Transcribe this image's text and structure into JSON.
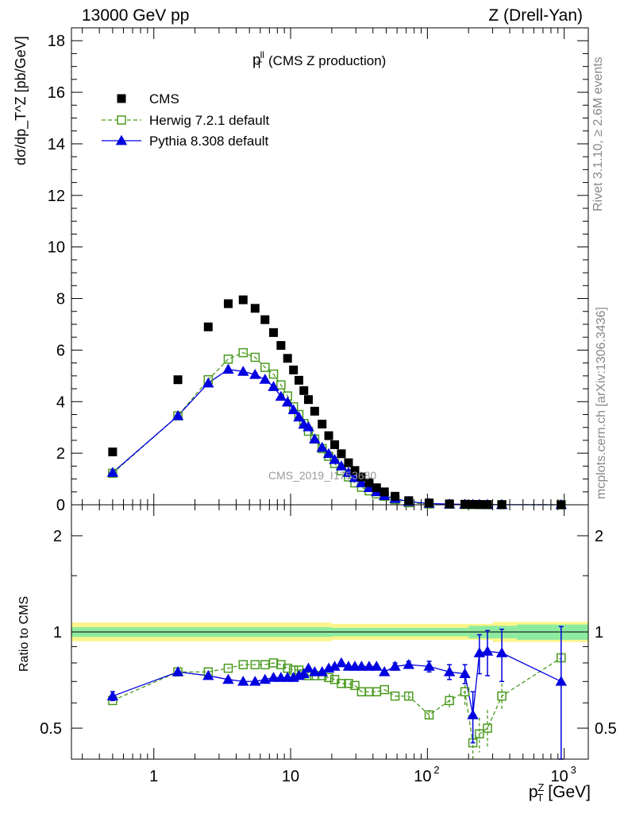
{
  "header": {
    "left": "13000 GeV pp",
    "right": "Z (Drell-Yan)"
  },
  "side_labels": {
    "rivet": "Rivet 3.1.10, ≥ 2.6M events",
    "mcplots": "mcplots.cern.ch [arXiv:1306.3436]"
  },
  "watermark": "CMS_2019_I1753680",
  "colors": {
    "cms": "#000000",
    "herwig": "#4a9a1e",
    "pythia": "#0000e0",
    "band_outer": "#fbf58a",
    "band_inner": "#8deba0"
  },
  "chart_data": [
    {
      "type": "scatter",
      "panel": "main",
      "title": "p_T^{ll} (CMS Z production)",
      "title_main": "p",
      "title_sup": "ll",
      "title_sub": "T",
      "title_rest": "(CMS Z production)",
      "ylabel": "dσ/dp_T^Z [pb/GeV]",
      "ylim": [
        0,
        18.5
      ],
      "xscale": "log",
      "xlim": [
        0.25,
        1500
      ],
      "yticks": [
        "0",
        "2",
        "4",
        "6",
        "8",
        "10",
        "12",
        "14",
        "16",
        "18"
      ],
      "legend_position": "top-left",
      "legend": [
        {
          "label": "CMS",
          "style": "filled-square"
        },
        {
          "label": "Herwig 7.2.1 default",
          "style": "open-square-dashed"
        },
        {
          "label": "Pythia 8.308 default",
          "style": "filled-triangle-solid"
        }
      ],
      "x": [
        0.5,
        1.5,
        2.5,
        3.5,
        4.5,
        5.5,
        6.5,
        7.5,
        8.5,
        9.5,
        10.5,
        11.5,
        12.5,
        13.5,
        15.0,
        17.0,
        19.0,
        21.0,
        23.5,
        26.5,
        29.5,
        33.0,
        37.5,
        42.5,
        48.5,
        58.0,
        73.0,
        103.0,
        145.0,
        188.0,
        215.0,
        240.0,
        275.0,
        350.0,
        950.0
      ],
      "series": [
        {
          "name": "CMS",
          "values": [
            2.05,
            4.85,
            6.9,
            7.8,
            7.95,
            7.62,
            7.18,
            6.68,
            6.18,
            5.68,
            5.23,
            4.83,
            4.43,
            4.08,
            3.63,
            3.13,
            2.68,
            2.33,
            1.98,
            1.63,
            1.33,
            1.08,
            0.86,
            0.66,
            0.5,
            0.33,
            0.16,
            0.07,
            0.035,
            0.02,
            0.015,
            0.012,
            0.009,
            0.006,
            0.001
          ]
        },
        {
          "name": "Herwig 7.2.1 default",
          "values": [
            1.22,
            3.45,
            4.85,
            5.65,
            5.9,
            5.72,
            5.33,
            5.07,
            4.65,
            4.22,
            3.8,
            3.5,
            3.15,
            2.85,
            2.55,
            2.18,
            1.88,
            1.6,
            1.32,
            1.08,
            0.85,
            0.68,
            0.54,
            0.42,
            0.33,
            0.2,
            0.08,
            0.03,
            0.02,
            0.01,
            0.008,
            0.006,
            0.004,
            0.004,
            0.001
          ]
        },
        {
          "name": "Pythia 8.308 default",
          "values": [
            1.25,
            3.45,
            4.72,
            5.25,
            5.17,
            5.05,
            4.86,
            4.58,
            4.2,
            3.98,
            3.68,
            3.4,
            3.12,
            3.02,
            2.55,
            2.22,
            1.98,
            1.75,
            1.5,
            1.25,
            1.05,
            0.85,
            0.66,
            0.5,
            0.35,
            0.24,
            0.12,
            0.05,
            0.025,
            0.015,
            0.013,
            0.01,
            0.008,
            0.005,
            0.001
          ]
        }
      ]
    },
    {
      "type": "scatter",
      "panel": "ratio",
      "ylabel": "Ratio to CMS",
      "xlabel": "p_T^Z [GeV]",
      "xlabel_main": "p",
      "xlabel_sup": "Z",
      "xlabel_sub": "T",
      "xlabel_rest": "[GeV]",
      "xscale": "log",
      "xlim": [
        0.25,
        1500
      ],
      "yscale": "log",
      "ylim": [
        0.4,
        2.5
      ],
      "yticks": [
        "0.5",
        "1",
        "2"
      ],
      "xtick_labels": [
        "1",
        "10",
        "10",
        "10"
      ],
      "xtick_exponents": [
        "",
        "",
        "2",
        "3"
      ],
      "x": [
        0.5,
        1.5,
        2.5,
        3.5,
        4.5,
        5.5,
        6.5,
        7.5,
        8.5,
        9.5,
        10.5,
        11.5,
        12.5,
        13.5,
        15.0,
        17.0,
        19.0,
        21.0,
        23.5,
        26.5,
        29.5,
        33.0,
        37.5,
        42.5,
        48.5,
        58.0,
        73.0,
        103.0,
        145.0,
        188.0,
        215.0,
        240.0,
        275.0,
        350.0,
        950.0
      ],
      "series": [
        {
          "name": "Herwig 7.2.1 default",
          "values": [
            0.61,
            0.75,
            0.75,
            0.77,
            0.79,
            0.79,
            0.79,
            0.8,
            0.79,
            0.77,
            0.76,
            0.76,
            0.74,
            0.73,
            0.73,
            0.73,
            0.72,
            0.71,
            0.69,
            0.69,
            0.68,
            0.65,
            0.65,
            0.65,
            0.66,
            0.63,
            0.63,
            0.55,
            0.61,
            0.65,
            0.45,
            0.48,
            0.5,
            0.63,
            0.83
          ],
          "err": [
            0.01,
            0.01,
            0.01,
            0.01,
            0.01,
            0.01,
            0.01,
            0.01,
            0.01,
            0.01,
            0.01,
            0.01,
            0.01,
            0.01,
            0.01,
            0.01,
            0.01,
            0.01,
            0.01,
            0.01,
            0.01,
            0.01,
            0.01,
            0.01,
            0.01,
            0.01,
            0.02,
            0.02,
            0.03,
            0.06,
            0.05,
            0.06,
            0.07,
            0.06,
            0.14
          ]
        },
        {
          "name": "Pythia 8.308 default",
          "values": [
            0.63,
            0.75,
            0.73,
            0.71,
            0.7,
            0.7,
            0.71,
            0.72,
            0.72,
            0.72,
            0.72,
            0.73,
            0.74,
            0.77,
            0.75,
            0.75,
            0.77,
            0.78,
            0.8,
            0.78,
            0.78,
            0.78,
            0.78,
            0.78,
            0.75,
            0.78,
            0.79,
            0.78,
            0.75,
            0.74,
            0.55,
            0.86,
            0.87,
            0.86,
            0.7
          ],
          "err": [
            0.02,
            0.01,
            0.01,
            0.01,
            0.01,
            0.01,
            0.01,
            0.01,
            0.01,
            0.01,
            0.01,
            0.01,
            0.01,
            0.01,
            0.01,
            0.01,
            0.01,
            0.01,
            0.01,
            0.01,
            0.01,
            0.01,
            0.01,
            0.01,
            0.01,
            0.02,
            0.02,
            0.03,
            0.04,
            0.05,
            0.1,
            0.12,
            0.14,
            0.16,
            0.34
          ]
        }
      ],
      "band_outer": [
        {
          "x0": 0.25,
          "x1": 20,
          "lo": 0.935,
          "hi": 1.07
        },
        {
          "x0": 20,
          "x1": 300,
          "lo": 0.945,
          "hi": 1.06
        },
        {
          "x0": 300,
          "x1": 1500,
          "lo": 0.93,
          "hi": 1.075
        }
      ],
      "band_inner": [
        {
          "x0": 0.25,
          "x1": 20,
          "lo": 0.965,
          "hi": 1.035
        },
        {
          "x0": 20,
          "x1": 200,
          "lo": 0.97,
          "hi": 1.03
        },
        {
          "x0": 200,
          "x1": 450,
          "lo": 0.955,
          "hi": 1.045
        },
        {
          "x0": 450,
          "x1": 1500,
          "lo": 0.945,
          "hi": 1.055
        }
      ]
    }
  ]
}
